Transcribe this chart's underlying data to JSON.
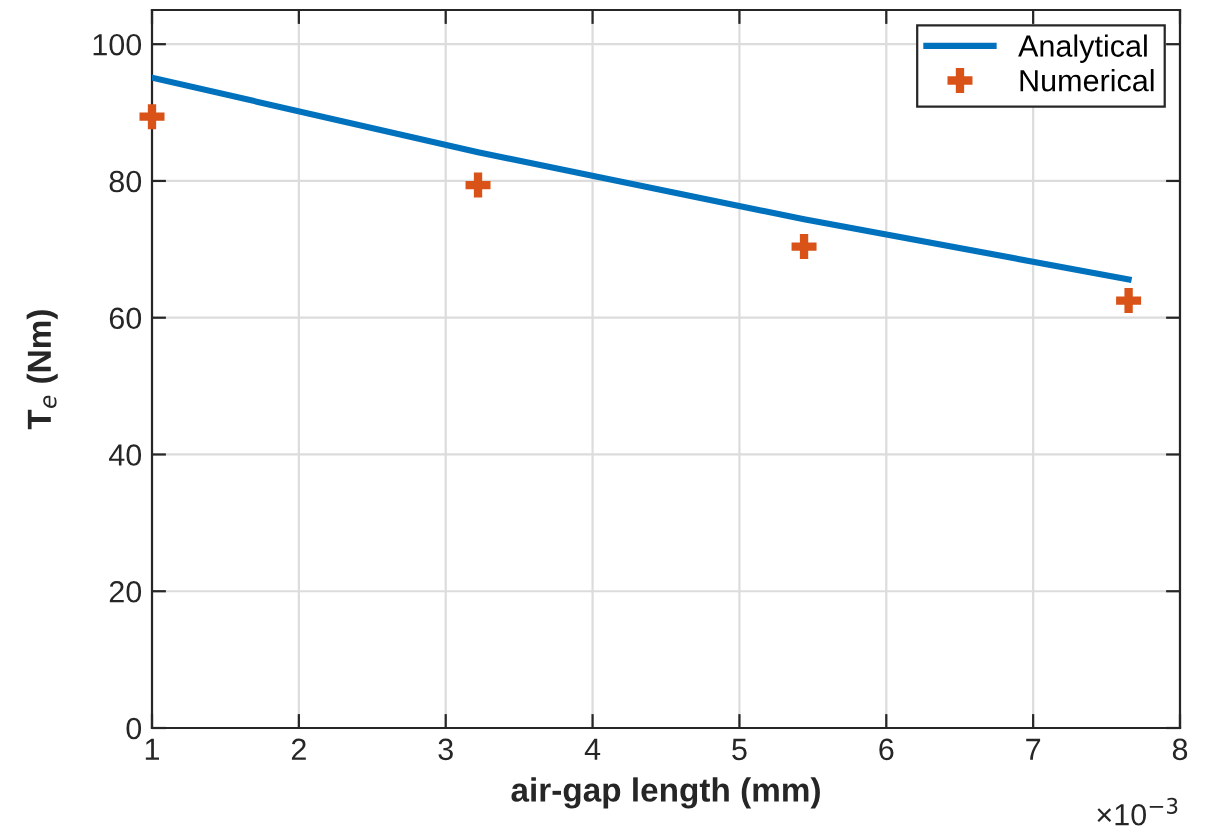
{
  "chart_data": {
    "type": "line",
    "xlabel": "air-gap length (mm)",
    "ylabel": "T$_{e}$ (Nm)",
    "series": [
      {
        "name": "Analytical",
        "color": "#0072bd",
        "marker": "none",
        "line_style": "solid",
        "x": [
          1.0,
          3.22,
          5.44,
          7.65
        ],
        "values": [
          95.1,
          84.2,
          74.4,
          65.6
        ]
      },
      {
        "name": "Numerical",
        "type": "scatter",
        "color": "#d95319",
        "marker": "cross",
        "x": [
          1.0,
          3.22,
          5.44,
          7.65
        ],
        "values": [
          89.4,
          79.4,
          70.4,
          62.5
        ]
      }
    ],
    "xlim": [
      1,
      8
    ],
    "xticks": [
      1,
      2,
      3,
      4,
      5,
      6,
      7,
      8
    ],
    "ylim": [
      0,
      105
    ],
    "yticks": [
      0,
      20,
      40,
      60,
      80,
      100
    ],
    "annotations": [
      "×10$^{−3}$"
    ],
    "grid": true,
    "legend": "top right"
  }
}
